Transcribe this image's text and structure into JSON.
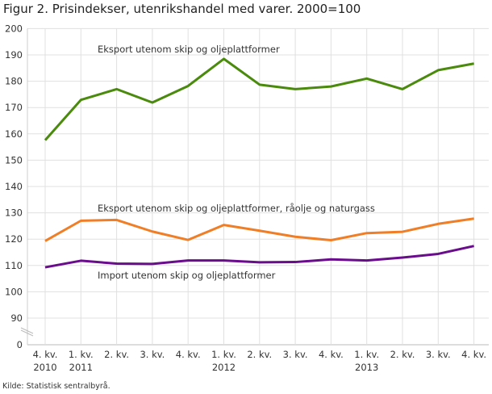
{
  "chart_data": {
    "type": "line",
    "title": "Figur 2. Prisindekser, utenrikshandel med varer. 2000=100",
    "source": "Kilde: Statistisk sentralbyrå.",
    "categories": [
      [
        "4. kv.",
        "2010"
      ],
      [
        "1. kv.",
        "2011"
      ],
      [
        "2. kv.",
        ""
      ],
      [
        "3. kv.",
        ""
      ],
      [
        "4. kv.",
        ""
      ],
      [
        "1. kv.",
        "2012"
      ],
      [
        "2. kv.",
        ""
      ],
      [
        "3. kv.",
        ""
      ],
      [
        "4. kv.",
        ""
      ],
      [
        "1. kv.",
        "2013"
      ],
      [
        "2. kv.",
        ""
      ],
      [
        "3. kv.",
        ""
      ],
      [
        "4. kv.",
        ""
      ]
    ],
    "yticks": [
      0,
      90,
      100,
      110,
      120,
      130,
      140,
      150,
      160,
      170,
      180,
      190,
      200
    ],
    "ylim": [
      90,
      200
    ],
    "y_axis_break": "between 0 and 90",
    "grid": true,
    "series": [
      {
        "name": "Eksport utenom skip og oljeplattformer",
        "color": "#4a8a0c",
        "values": [
          157.6,
          172.9,
          177.0,
          171.9,
          178.2,
          188.5,
          178.7,
          177.0,
          178.0,
          181.0,
          177.0,
          184.2,
          186.7
        ]
      },
      {
        "name": "Eksport utenom skip og oljeplattformer, råolje og naturgass",
        "color": "#f07e26",
        "values": [
          119.3,
          127.0,
          127.3,
          122.9,
          119.7,
          125.4,
          123.2,
          120.9,
          119.6,
          122.3,
          122.8,
          125.8,
          127.8
        ]
      },
      {
        "name": "Import utenom skip og oljeplattformer",
        "color": "#6a0d8c",
        "values": [
          109.3,
          111.8,
          110.7,
          110.6,
          111.9,
          111.9,
          111.2,
          111.3,
          112.3,
          111.9,
          113.0,
          114.4,
          117.4
        ]
      }
    ]
  }
}
